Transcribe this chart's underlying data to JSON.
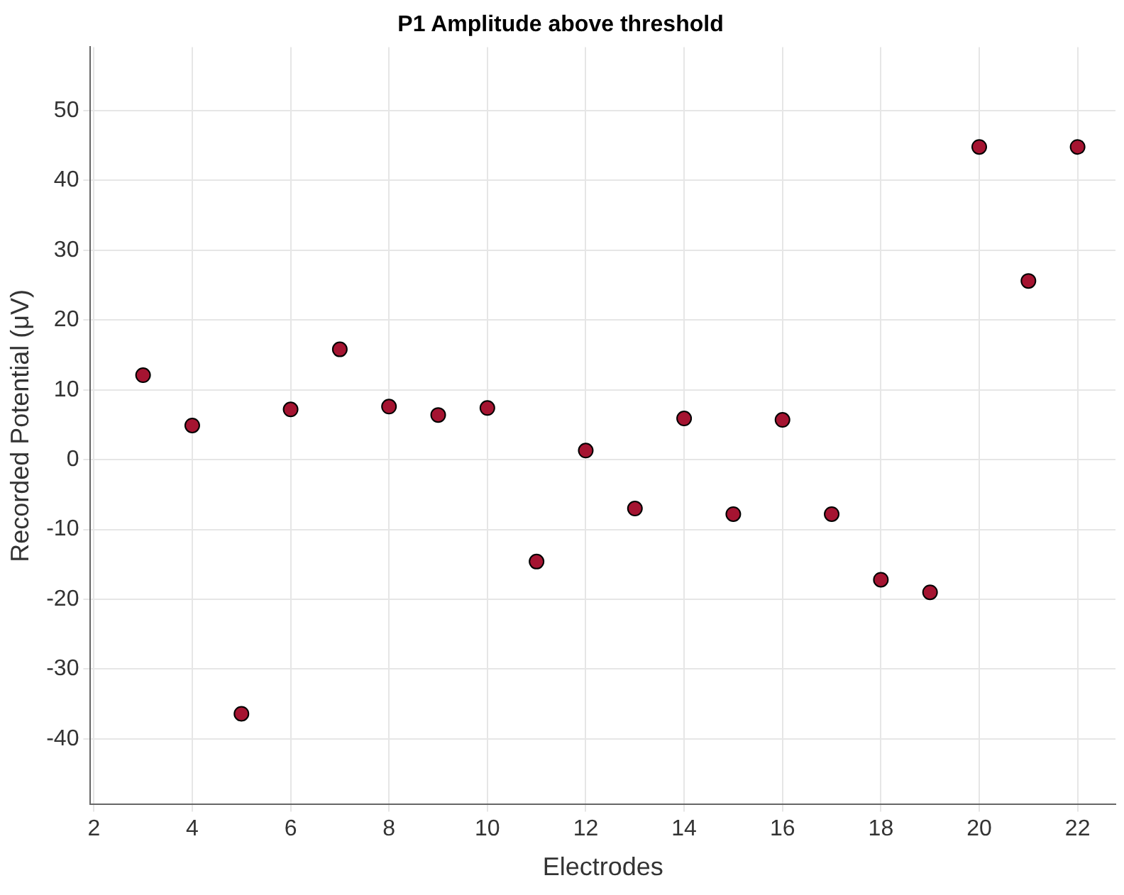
{
  "chart_data": {
    "type": "scatter",
    "title": "P1 Amplitude above threshold",
    "xlabel": "Electrodes",
    "ylabel": "Recorded Potential (μV)",
    "x": [
      3,
      4,
      5,
      6,
      7,
      8,
      9,
      10,
      11,
      12,
      13,
      14,
      15,
      16,
      17,
      18,
      19,
      20,
      21,
      22
    ],
    "series": [
      {
        "color": "#a51431",
        "values": [
          12.1,
          4.9,
          -36.4,
          7.2,
          15.8,
          7.6,
          6.4,
          7.4,
          -14.6,
          1.3,
          -7.0,
          5.9,
          -7.8,
          5.7,
          -7.8,
          -17.2,
          -19.0,
          44.8,
          25.6,
          44.8
        ]
      }
    ],
    "xlim": [
      1.93,
      22.77
    ],
    "xticks": [
      2,
      4,
      6,
      8,
      10,
      12,
      14,
      16,
      18,
      20,
      22
    ],
    "ylim": [
      -49.4,
      59.1
    ],
    "yticks": [
      -40,
      -30,
      -20,
      -10,
      0,
      10,
      20,
      30,
      40,
      50
    ],
    "grid": true,
    "marker": "circle",
    "legend": false
  }
}
